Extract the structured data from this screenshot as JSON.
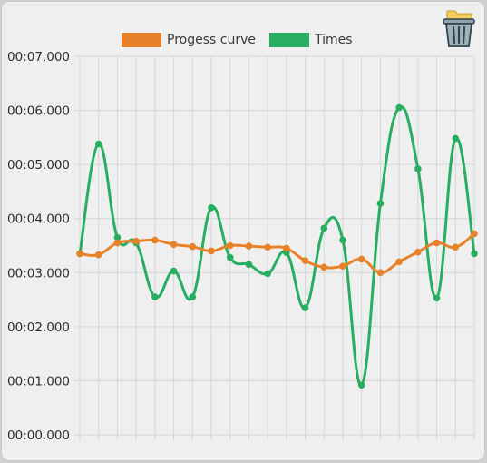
{
  "chart_data": {
    "type": "line",
    "title": "",
    "xlabel": "",
    "ylabel": "",
    "y_tick_labels": [
      "00:00.000",
      "00:01.000",
      "00:02.000",
      "00:03.000",
      "00:04.000",
      "00:05.000",
      "00:06.000",
      "00:07.000"
    ],
    "ylim": [
      0,
      7
    ],
    "grid": true,
    "legend_position": "top",
    "x": [
      1,
      2,
      3,
      4,
      5,
      6,
      7,
      8,
      9,
      10,
      11,
      12,
      13,
      14,
      15,
      16,
      17,
      18,
      19,
      20,
      21,
      22
    ],
    "series": [
      {
        "name": "Progess curve",
        "color": "#e8822a",
        "values": [
          3.35,
          3.33,
          3.55,
          3.58,
          3.6,
          3.52,
          3.48,
          3.4,
          3.5,
          3.49,
          3.47,
          3.45,
          3.22,
          3.1,
          3.12,
          3.25,
          3.0,
          3.2,
          3.38,
          3.55,
          3.47,
          3.72
        ]
      },
      {
        "name": "Times",
        "color": "#27ae60",
        "values": [
          3.35,
          5.38,
          3.65,
          3.55,
          2.55,
          3.03,
          2.55,
          4.2,
          3.28,
          3.15,
          2.98,
          3.37,
          2.35,
          3.82,
          3.6,
          0.92,
          4.28,
          6.05,
          4.92,
          2.53,
          5.48,
          3.35
        ]
      }
    ]
  },
  "toolbar": {
    "trash_icon": "trash-can-with-folder-icon"
  }
}
